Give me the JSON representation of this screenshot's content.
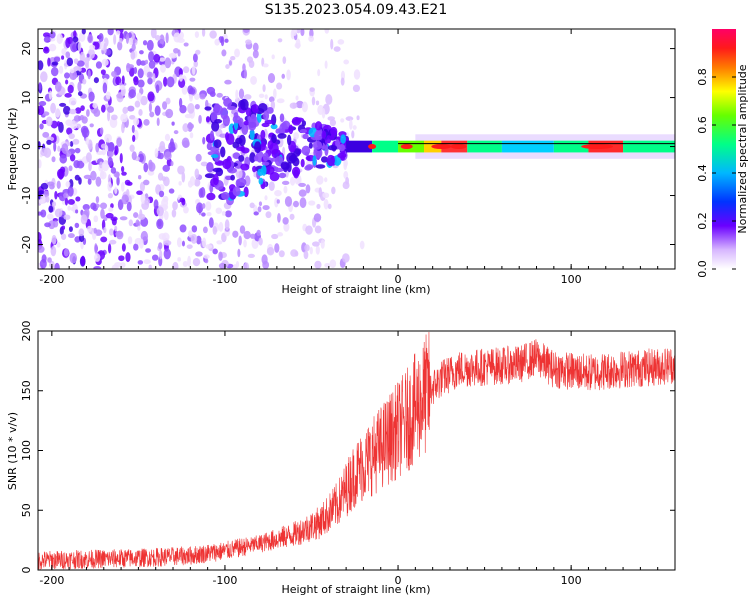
{
  "title": "S135.2023.054.09.43.E21",
  "charts": [
    {
      "type": "heatmap",
      "xlabel": "Height of straight line (km)",
      "ylabel": "Frequency (Hz)",
      "xlim": [
        -208,
        160
      ],
      "ylim": [
        -25,
        24
      ],
      "xticks": [
        -200,
        -100,
        0,
        100
      ],
      "yticks": [
        -20,
        -10,
        0,
        10,
        20
      ],
      "colorbar": {
        "label": "Normalized spectral amplitude",
        "range": [
          0,
          1
        ],
        "ticks": [
          0.0,
          0.2,
          0.4,
          0.6,
          0.8
        ],
        "tick_labels": [
          "0.0",
          "0.2",
          "0.4",
          "0.6",
          "0.8"
        ]
      },
      "description_values": {
        "dominant_frequency_hz": 0,
        "noise_region_km": [
          -208,
          -30
        ],
        "signal_region_km": [
          -30,
          160
        ]
      }
    },
    {
      "type": "line",
      "xlabel": "Height of straight line (km)",
      "ylabel": "SNR (10 * v/v)",
      "xlim": [
        -208,
        160
      ],
      "ylim": [
        0,
        200
      ],
      "xticks": [
        -200,
        -100,
        0,
        100
      ],
      "yticks": [
        0,
        50,
        100,
        150,
        200
      ],
      "color": "#ee3333",
      "series": [
        {
          "x": [
            -208,
            -180,
            -150,
            -120,
            -100,
            -80,
            -60,
            -45,
            -35,
            -25,
            -15,
            -5,
            5,
            15,
            25,
            35,
            50,
            70,
            80,
            90,
            110,
            130,
            150,
            160
          ],
          "y": [
            8,
            9,
            10,
            12,
            16,
            22,
            30,
            40,
            55,
            80,
            95,
            110,
            125,
            145,
            160,
            168,
            170,
            172,
            178,
            168,
            165,
            168,
            170,
            172
          ]
        }
      ]
    }
  ]
}
